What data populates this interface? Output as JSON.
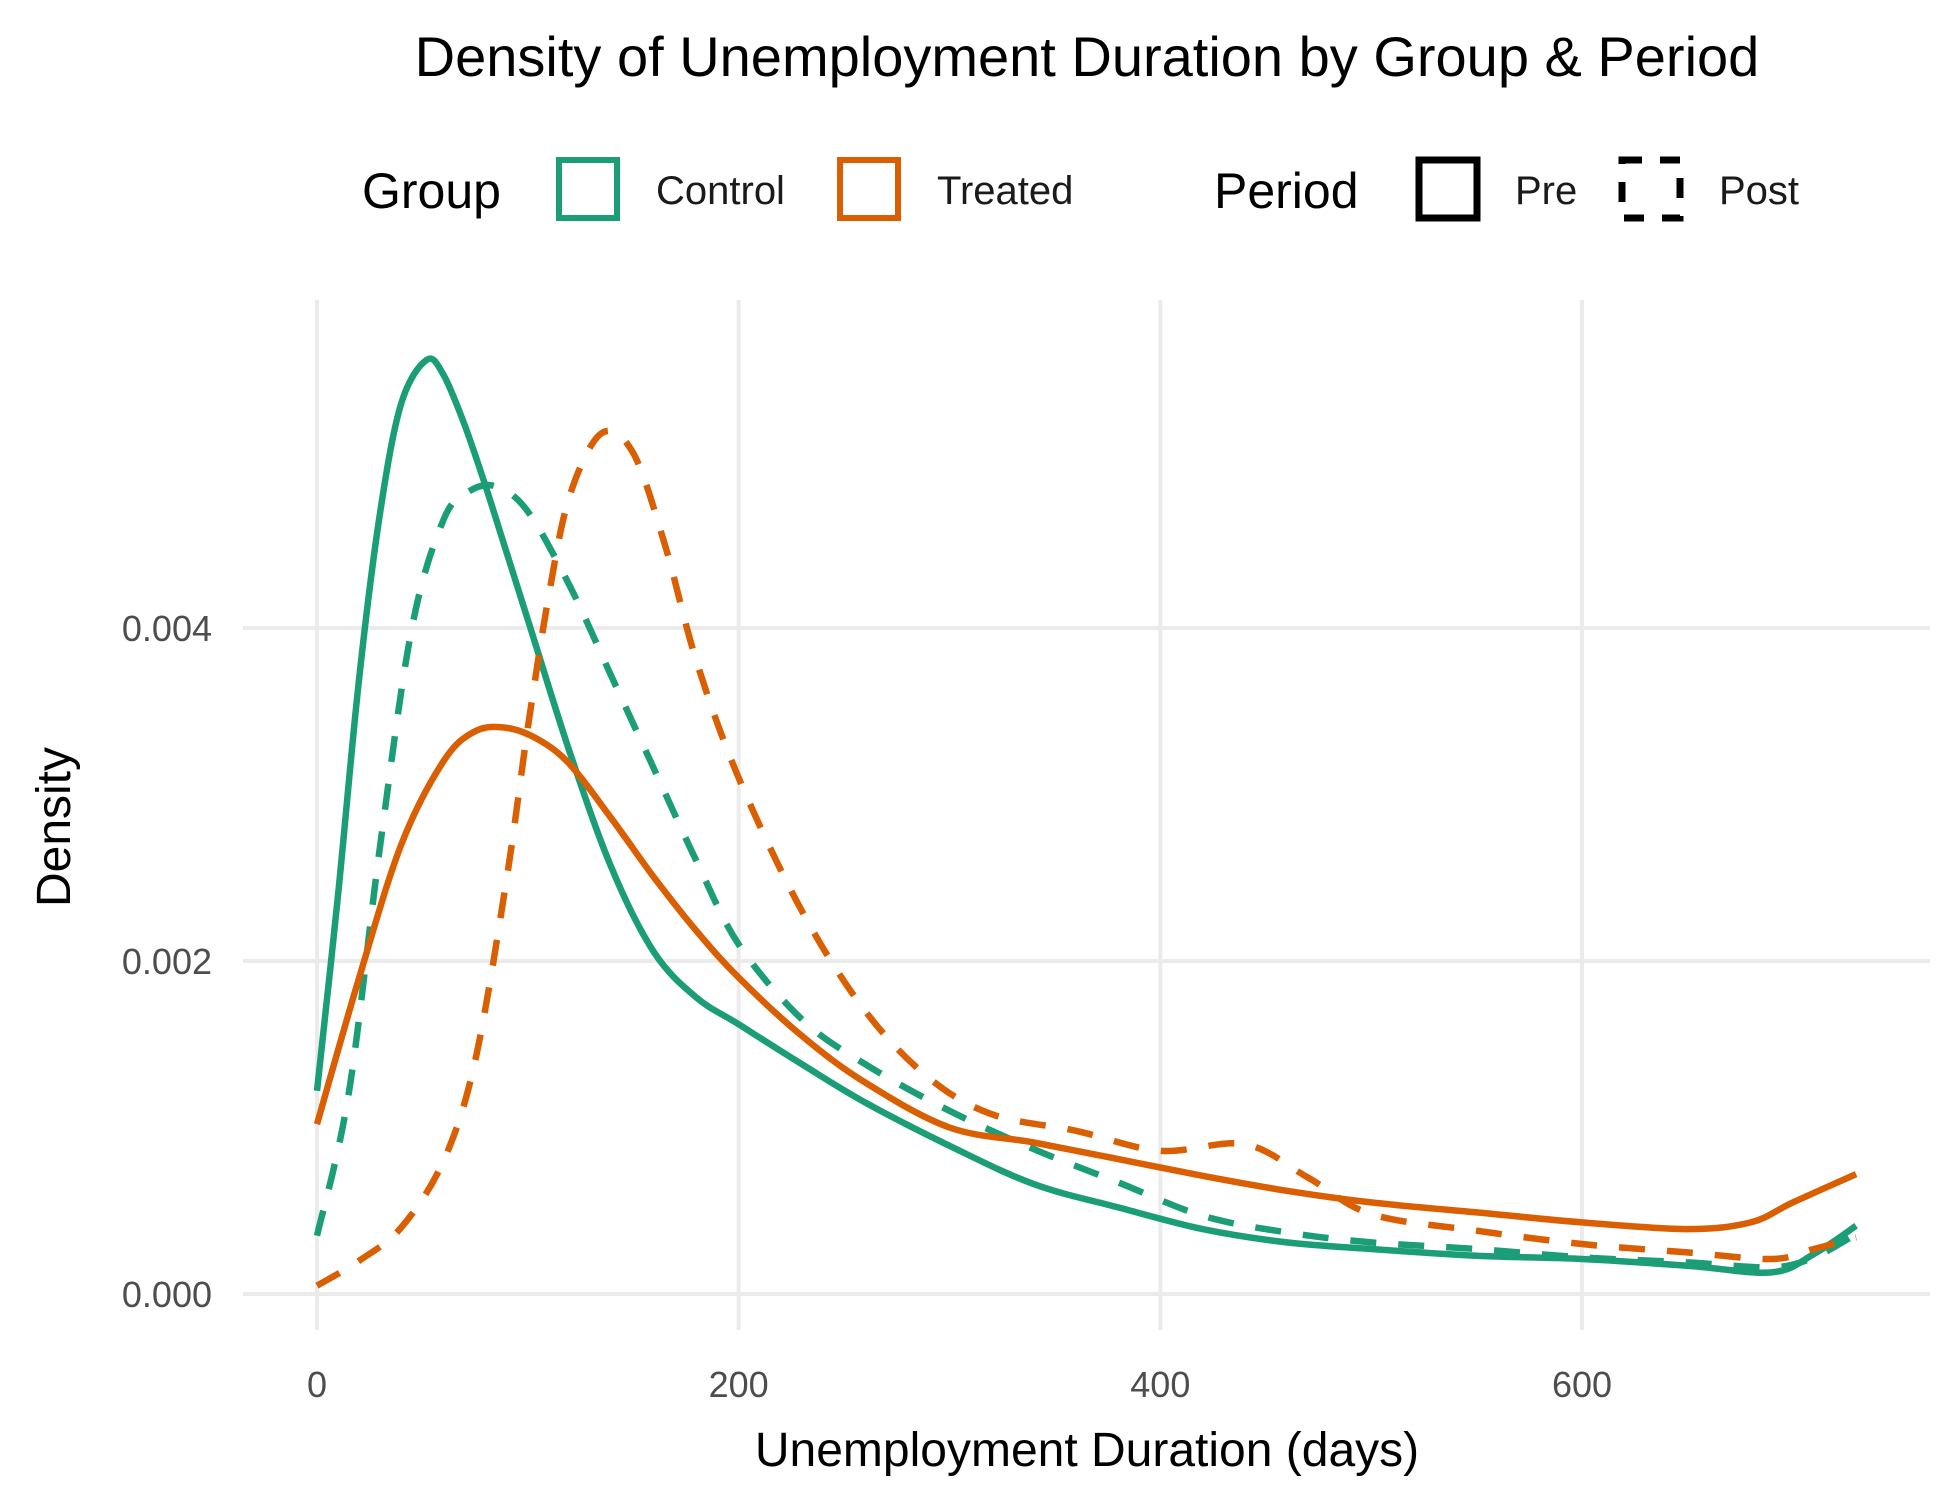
{
  "chart_data": {
    "type": "line",
    "title": "Density of Unemployment Duration by Group & Period",
    "xlabel": "Unemployment Duration (days)",
    "ylabel": "Density",
    "xlim": [
      0,
      730
    ],
    "ylim": [
      0,
      0.0055
    ],
    "x_ticks": [
      0,
      200,
      400,
      600
    ],
    "x_tick_labels": [
      "0",
      "200",
      "400",
      "600"
    ],
    "y_ticks": [
      0,
      0.002,
      0.004
    ],
    "y_tick_labels": [
      "0.000",
      "0.002",
      "0.004"
    ],
    "grid": true,
    "legend_position": "top",
    "legend": {
      "group_title": "Group",
      "group_entries": [
        {
          "label": "Control",
          "color": "#1b9e77"
        },
        {
          "label": "Treated",
          "color": "#d95f02"
        }
      ],
      "period_title": "Period",
      "period_entries": [
        {
          "label": "Pre",
          "linetype": "solid"
        },
        {
          "label": "Post",
          "linetype": "dashed"
        }
      ]
    },
    "series": [
      {
        "group": "Control",
        "period": "Pre",
        "color": "#1b9e77",
        "linetype": "solid",
        "x": [
          0,
          10,
          20,
          30,
          40,
          52,
          60,
          70,
          80,
          90,
          100,
          120,
          140,
          160,
          180,
          200,
          230,
          260,
          300,
          340,
          380,
          420,
          460,
          500,
          550,
          600,
          650,
          690,
          710,
          730
        ],
        "y": [
          0.00122,
          0.0024,
          0.0037,
          0.0047,
          0.00535,
          0.00561,
          0.00552,
          0.00522,
          0.00485,
          0.00445,
          0.00405,
          0.00325,
          0.00255,
          0.00205,
          0.00178,
          0.00162,
          0.00138,
          0.00115,
          0.00089,
          0.00066,
          0.00052,
          0.00039,
          0.00031,
          0.00027,
          0.00023,
          0.00021,
          0.00017,
          0.00013,
          0.00024,
          0.00041
        ]
      },
      {
        "group": "Control",
        "period": "Post",
        "color": "#1b9e77",
        "linetype": "dashed",
        "x": [
          0,
          15,
          30,
          45,
          60,
          72,
          85,
          100,
          120,
          140,
          160,
          180,
          200,
          230,
          260,
          300,
          340,
          380,
          420,
          460,
          500,
          550,
          600,
          650,
          690,
          710,
          730
        ],
        "y": [
          0.00035,
          0.0012,
          0.0027,
          0.004,
          0.00465,
          0.00482,
          0.00485,
          0.0047,
          0.00425,
          0.0037,
          0.00315,
          0.0026,
          0.0021,
          0.00165,
          0.00138,
          0.0011,
          0.00087,
          0.00067,
          0.00047,
          0.00037,
          0.00031,
          0.00027,
          0.00022,
          0.00019,
          0.00016,
          0.00022,
          0.00036
        ]
      },
      {
        "group": "Treated",
        "period": "Pre",
        "color": "#d95f02",
        "linetype": "solid",
        "x": [
          0,
          20,
          40,
          60,
          75,
          90,
          105,
          120,
          140,
          160,
          180,
          200,
          230,
          260,
          300,
          340,
          380,
          420,
          460,
          500,
          550,
          600,
          650,
          680,
          700,
          730
        ],
        "y": [
          0.00102,
          0.0019,
          0.0027,
          0.0032,
          0.00338,
          0.0034,
          0.00333,
          0.00318,
          0.00285,
          0.0025,
          0.00218,
          0.0019,
          0.00155,
          0.00127,
          0.001,
          0.00091,
          0.00081,
          0.00071,
          0.00062,
          0.00055,
          0.00049,
          0.00043,
          0.00039,
          0.00043,
          0.00055,
          0.00072
        ]
      },
      {
        "group": "Treated",
        "period": "Post",
        "color": "#d95f02",
        "linetype": "dashed",
        "x": [
          0,
          20,
          40,
          60,
          75,
          90,
          100,
          110,
          120,
          135,
          150,
          165,
          180,
          200,
          230,
          260,
          290,
          320,
          360,
          400,
          440,
          470,
          500,
          550,
          600,
          650,
          690,
          710,
          730
        ],
        "y": [
          5e-05,
          0.0002,
          0.0004,
          0.0008,
          0.0014,
          0.0025,
          0.0034,
          0.0042,
          0.0048,
          0.00517,
          0.00505,
          0.0045,
          0.0038,
          0.0031,
          0.0023,
          0.0017,
          0.0013,
          0.00108,
          0.00098,
          0.00086,
          0.0009,
          0.0007,
          0.00048,
          0.00038,
          0.0003,
          0.00025,
          0.00021,
          0.00027,
          0.00034
        ]
      }
    ]
  }
}
